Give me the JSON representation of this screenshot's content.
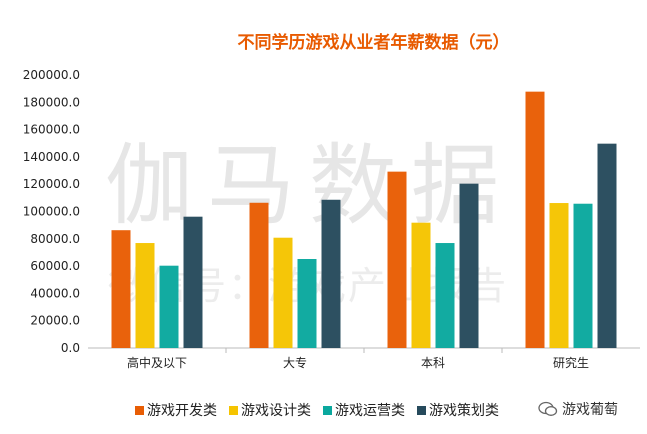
{
  "watermarks": {
    "main": "伽马数据",
    "sub": "微信号：游戏产业报告"
  },
  "logo": {
    "text": "游戏葡萄",
    "icon": "wechat-icon"
  },
  "chart_data": {
    "type": "bar",
    "title": "不同学历游戏从业者年薪数据（元）",
    "categories": [
      "高中及以下",
      "大专",
      "本科",
      "研究生"
    ],
    "series": [
      {
        "name": "游戏开发类",
        "color": "#e85d04",
        "values": [
          86300,
          106400,
          129200,
          187800
        ]
      },
      {
        "name": "游戏设计类",
        "color": "#f5c400",
        "values": [
          76900,
          80800,
          91800,
          106200
        ]
      },
      {
        "name": "游戏运营类",
        "color": "#0aa89e",
        "values": [
          60300,
          65200,
          76900,
          105700
        ]
      },
      {
        "name": "游戏策划类",
        "color": "#264a5c",
        "values": [
          96200,
          108600,
          120400,
          149700
        ]
      }
    ],
    "yticks": [
      "0.0",
      "20000.0",
      "40000.0",
      "60000.0",
      "80000.0",
      "100000.0",
      "120000.0",
      "140000.0",
      "160000.0",
      "180000.0",
      "200000.0"
    ],
    "ylim": [
      0,
      200000
    ],
    "grid": false,
    "legend": "bottom"
  }
}
